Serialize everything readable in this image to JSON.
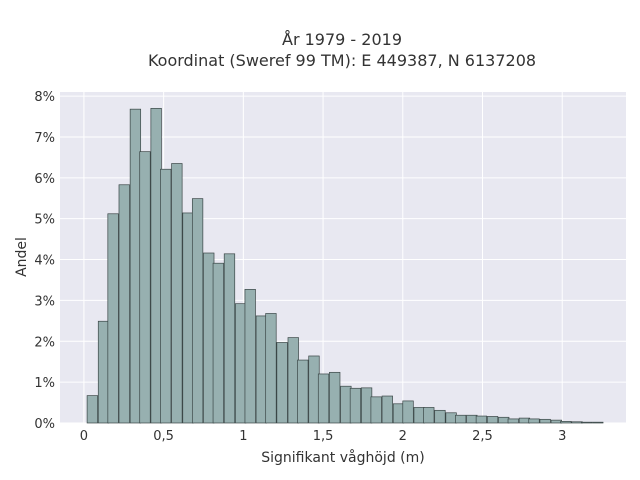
{
  "chart_data": {
    "type": "bar",
    "title": "År 1979 - 2019",
    "subtitle": "Koordinat (Sweref 99 TM): E 449387, N 6137208",
    "xlabel": "Signifikant våghöjd (m)",
    "ylabel": "Andel",
    "xlim": [
      -0.15,
      3.4
    ],
    "ylim": [
      0,
      8.1
    ],
    "y_unit": "%",
    "bin_width": 0.066,
    "grid": true,
    "x_ticks": [
      {
        "value": 0,
        "label": "0"
      },
      {
        "value": 0.5,
        "label": "0,5"
      },
      {
        "value": 1,
        "label": "1"
      },
      {
        "value": 1.5,
        "label": "1,5"
      },
      {
        "value": 2,
        "label": "2"
      },
      {
        "value": 2.5,
        "label": "2,5"
      },
      {
        "value": 3,
        "label": "3"
      }
    ],
    "y_ticks": [
      {
        "value": 0,
        "label": "0%"
      },
      {
        "value": 1,
        "label": "1%"
      },
      {
        "value": 2,
        "label": "2%"
      },
      {
        "value": 3,
        "label": "3%"
      },
      {
        "value": 4,
        "label": "4%"
      },
      {
        "value": 5,
        "label": "5%"
      },
      {
        "value": 6,
        "label": "6%"
      },
      {
        "value": 7,
        "label": "7%"
      },
      {
        "value": 8,
        "label": "8%"
      }
    ],
    "bins_start": [
      0.02,
      0.09,
      0.15,
      0.22,
      0.29,
      0.35,
      0.42,
      0.48,
      0.55,
      0.62,
      0.68,
      0.75,
      0.81,
      0.88,
      0.95,
      1.01,
      1.08,
      1.14,
      1.21,
      1.28,
      1.34,
      1.41,
      1.47,
      1.54,
      1.61,
      1.67,
      1.74,
      1.8,
      1.87,
      1.94,
      2.0,
      2.07,
      2.13,
      2.2,
      2.27,
      2.33,
      2.4,
      2.46,
      2.53,
      2.6,
      2.66,
      2.73,
      2.79,
      2.86,
      2.93,
      2.99,
      3.06,
      3.12,
      3.19
    ],
    "values": [
      0.67,
      2.49,
      5.12,
      5.83,
      7.68,
      6.64,
      7.7,
      6.21,
      6.35,
      5.14,
      5.49,
      4.16,
      3.91,
      4.14,
      2.92,
      3.27,
      2.62,
      2.68,
      1.97,
      2.09,
      1.54,
      1.64,
      1.2,
      1.24,
      0.9,
      0.85,
      0.86,
      0.64,
      0.66,
      0.47,
      0.54,
      0.38,
      0.38,
      0.31,
      0.25,
      0.19,
      0.19,
      0.17,
      0.16,
      0.14,
      0.1,
      0.12,
      0.1,
      0.09,
      0.07,
      0.04,
      0.03,
      0.02,
      0.02
    ],
    "colors": {
      "bar_fill": "#97b0b0",
      "bar_stroke": "#3a4646",
      "plot_bg": "#e8e8f1",
      "grid": "#ffffff"
    }
  }
}
